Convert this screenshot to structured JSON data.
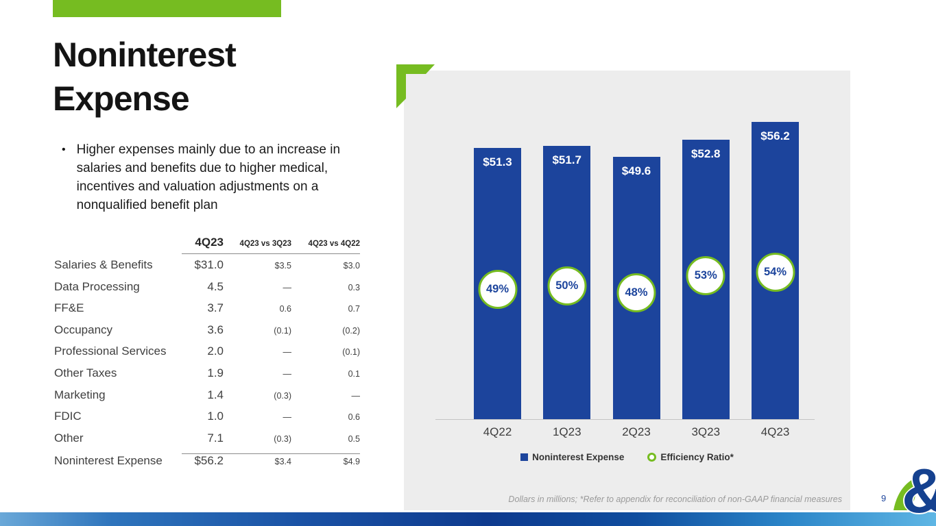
{
  "slide": {
    "title_lines": [
      "Noninterest",
      "Expense"
    ],
    "bullet_text": "Higher expenses mainly due to an increase in salaries and benefits due to higher medical, incentives and valuation adjustments on a nonqualified benefit plan",
    "page_number": "9",
    "logo_text": "&",
    "accent_green": "#76bc21",
    "brand_blue": "#1c449c"
  },
  "table": {
    "headers": {
      "col1": "4Q23",
      "col2": "4Q23 vs 3Q23",
      "col3": "4Q23 vs 4Q22"
    },
    "rows": [
      {
        "label": "Salaries & Benefits",
        "c1": "$31.0",
        "c2": "$3.5",
        "c3": "$3.0"
      },
      {
        "label": "Data Processing",
        "c1": "4.5",
        "c2": "—",
        "c3": "0.3"
      },
      {
        "label": "FF&E",
        "c1": "3.7",
        "c2": "0.6",
        "c3": "0.7"
      },
      {
        "label": "Occupancy",
        "c1": "3.6",
        "c2": "(0.1)",
        "c3": "(0.2)"
      },
      {
        "label": "Professional Services",
        "c1": "2.0",
        "c2": "—",
        "c3": "(0.1)"
      },
      {
        "label": "Other Taxes",
        "c1": "1.9",
        "c2": "—",
        "c3": "0.1"
      },
      {
        "label": "Marketing",
        "c1": "1.4",
        "c2": "(0.3)",
        "c3": "—"
      },
      {
        "label": "FDIC",
        "c1": "1.0",
        "c2": "—",
        "c3": "0.6"
      },
      {
        "label": "Other",
        "c1": "7.1",
        "c2": "(0.3)",
        "c3": "0.5"
      }
    ],
    "total": {
      "label": "Noninterest Expense",
      "c1": "$56.2",
      "c2": "$3.4",
      "c3": "$4.9"
    }
  },
  "chart_data": {
    "type": "bar",
    "title": "",
    "categories": [
      "4Q22",
      "1Q23",
      "2Q23",
      "3Q23",
      "4Q23"
    ],
    "series": [
      {
        "name": "Noninterest Expense",
        "type": "bar",
        "values": [
          51.3,
          51.7,
          49.6,
          52.8,
          56.2
        ],
        "labels": [
          "$51.3",
          "$51.7",
          "$49.6",
          "$52.8",
          "$56.2"
        ],
        "color": "#1c449c"
      },
      {
        "name": "Efficiency Ratio*",
        "type": "marker",
        "values": [
          49,
          50,
          48,
          53,
          54
        ],
        "labels": [
          "49%",
          "50%",
          "48%",
          "53%",
          "54%"
        ],
        "color": "#76bc21"
      }
    ],
    "legend": [
      {
        "label": "Noninterest Expense",
        "marker": "square"
      },
      {
        "label": "Efficiency Ratio*",
        "marker": "ring"
      }
    ],
    "legend_position": "bottom",
    "grid": false,
    "ylim": [
      0,
      66
    ],
    "xlabel": "",
    "ylabel": "",
    "footnote": "Dollars in millions; *Refer to appendix for reconciliation of non-GAAP financial measures"
  }
}
